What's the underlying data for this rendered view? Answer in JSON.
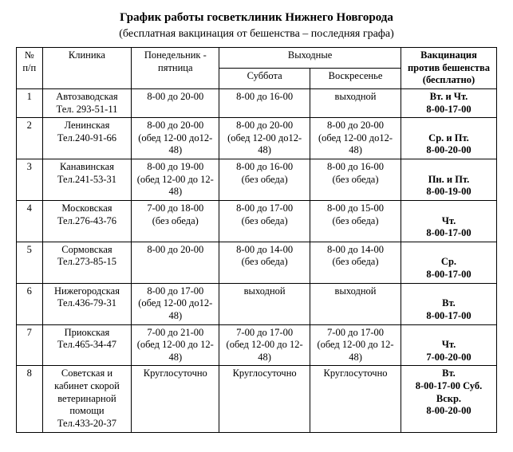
{
  "title": "График работы госветклиник Нижнего Новгорода",
  "subtitle": "(бесплатная вакцинация от бешенства – последняя графа)",
  "headers": {
    "num": "№ п/п",
    "clinic": "Клиника",
    "weekdays": "Понедельник - пятница",
    "weekend": "Выходные",
    "sat": "Суббота",
    "sun": "Воскресенье",
    "vaccination": "Вакцинация против бешенства (бесплатно)"
  },
  "rows": [
    {
      "n": "1",
      "clinic_name": "Автозаводская",
      "clinic_tel": "Тел. 293-51-11",
      "week": "8-00 до 20-00",
      "week2": "",
      "sat": "8-00 до 16-00",
      "sat2": "",
      "sun": "выходной",
      "sun2": "",
      "vac1": "Вт. и Чт.",
      "vac2": "8-00-17-00",
      "vac3": ""
    },
    {
      "n": "2",
      "clinic_name": "Ленинская",
      "clinic_tel": "Тел.240-91-66",
      "week": "8-00 до 20-00",
      "week2": "(обед 12-00 до12-48)",
      "sat": "8-00 до 20-00",
      "sat2": "(обед 12-00 до12-48)",
      "sun": "8-00 до 20-00",
      "sun2": "(обед 12-00 до12-48)",
      "vac1": "",
      "vac2": "Ср. и Пт.",
      "vac3": "8-00-20-00"
    },
    {
      "n": "3",
      "clinic_name": "Канавинская",
      "clinic_tel": "Тел.241-53-31",
      "week": "8-00 до 19-00",
      "week2": "(обед 12-00 до 12-48)",
      "sat": "8-00 до 16-00",
      "sat2": "(без обеда)",
      "sun": "8-00 до 16-00",
      "sun2": "(без обеда)",
      "vac1": "",
      "vac2": "Пн. и Пт.",
      "vac3": "8-00-19-00"
    },
    {
      "n": "4",
      "clinic_name": "Московская",
      "clinic_tel": "Тел.276-43-76",
      "week": "7-00 до 18-00",
      "week2": "(без обеда)",
      "sat": "8-00 до 17-00",
      "sat2": "(без обеда)",
      "sun": "8-00 до 15-00",
      "sun2": "(без обеда)",
      "vac1": "",
      "vac2": "Чт.",
      "vac3": "8-00-17-00"
    },
    {
      "n": "5",
      "clinic_name": "Сормовская",
      "clinic_tel": "Тел.273-85-15",
      "week": "8-00 до 20-00",
      "week2": "",
      "sat": "8-00 до 14-00",
      "sat2": "(без обеда)",
      "sun": "8-00 до 14-00",
      "sun2": "(без обеда)",
      "vac1": "",
      "vac2": "Ср.",
      "vac3": "8-00-17-00"
    },
    {
      "n": "6",
      "clinic_name": "Нижегородская",
      "clinic_tel": "Тел.436-79-31",
      "week": "8-00 до 17-00",
      "week2": "(обед 12-00 до12-48)",
      "sat": "выходной",
      "sat2": "",
      "sun": "выходной",
      "sun2": "",
      "vac1": "",
      "vac2": "Вт.",
      "vac3": "8-00-17-00"
    },
    {
      "n": "7",
      "clinic_name": "Приокская",
      "clinic_tel": "Тел.465-34-47",
      "week": "7-00 до 21-00",
      "week2": "(обед 12-00 до 12-48)",
      "sat": "7-00 до 17-00",
      "sat2": "(обед 12-00 до 12-48)",
      "sun": "7-00 до 17-00",
      "sun2": "(обед 12-00 до 12-48)",
      "vac1": "",
      "vac2": "Чт.",
      "vac3": "7-00-20-00"
    },
    {
      "n": "8",
      "clinic_name": "Советская и кабинет скорой ветеринарной помощи",
      "clinic_tel": "Тел.433-20-37",
      "week": "Круглосуточно",
      "week2": "",
      "sat": "Круглосуточно",
      "sat2": "",
      "sun": "Круглосуточно",
      "sun2": "",
      "vac1": "Вт.",
      "vac2": "8-00-17-00 Суб. Вскр.",
      "vac3": "8-00-20-00"
    }
  ]
}
